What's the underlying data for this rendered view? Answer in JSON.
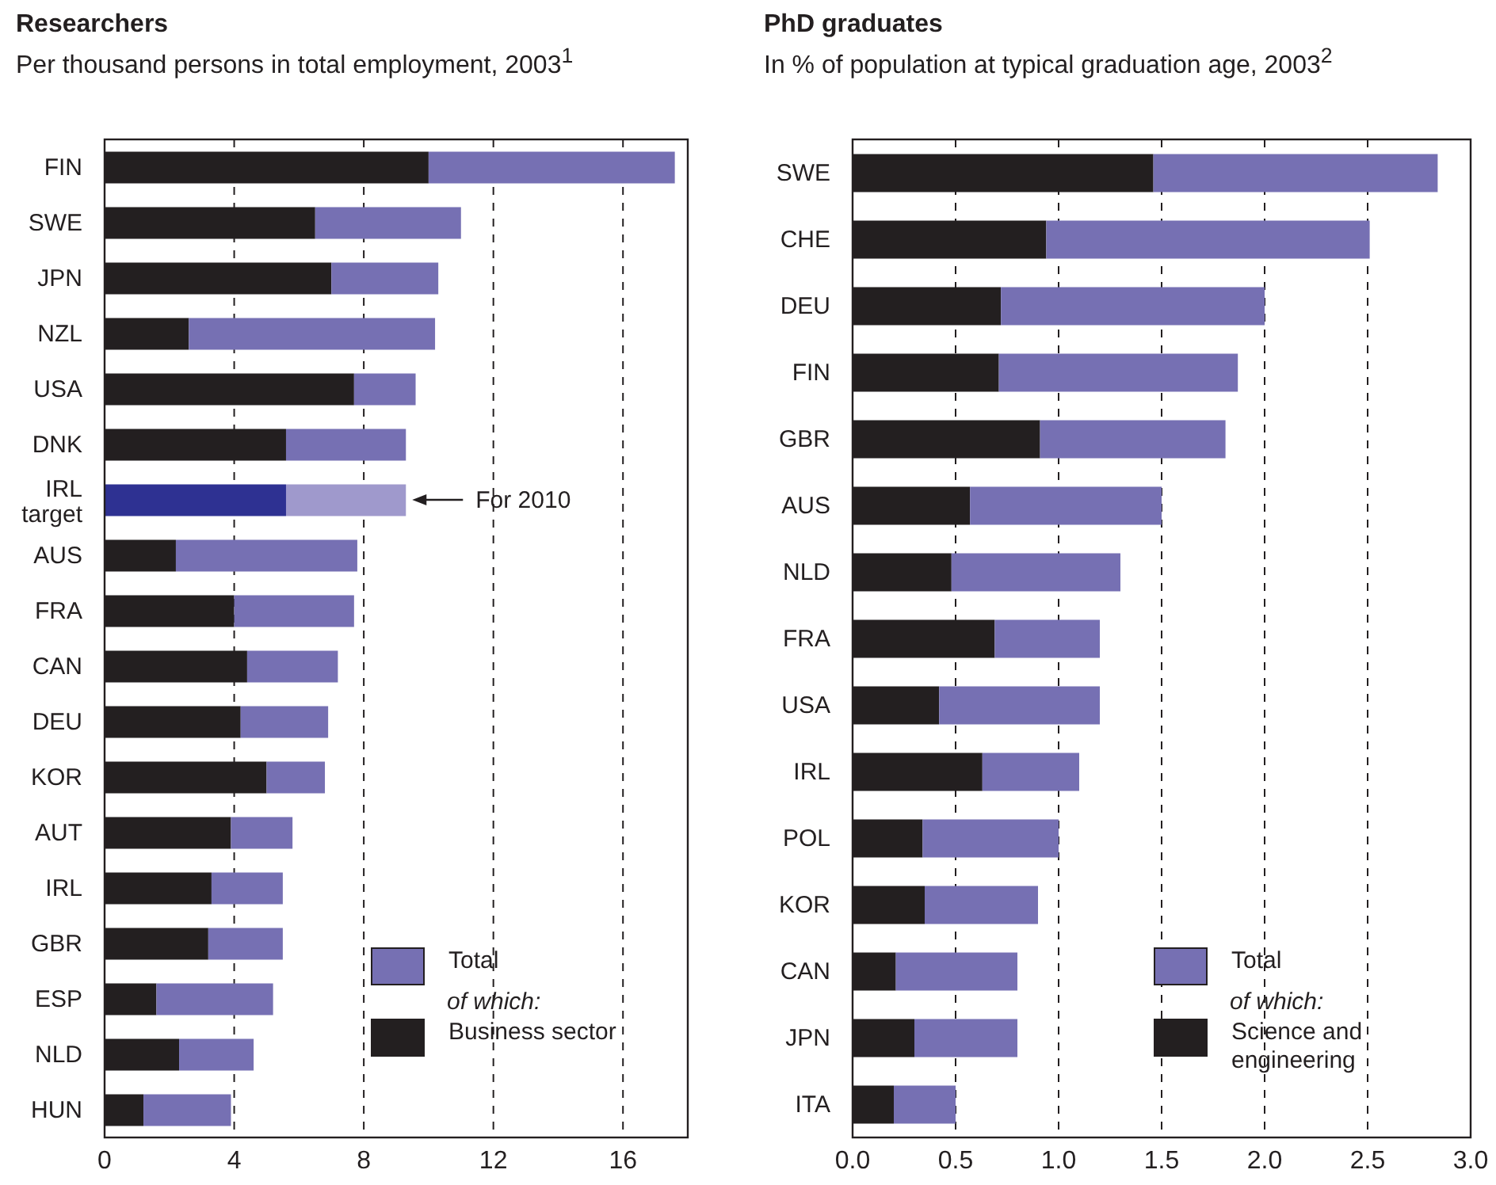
{
  "chart_data": [
    {
      "type": "bar",
      "orientation": "horizontal",
      "stacked": true,
      "title": "Researchers",
      "subtitle": "Per thousand persons in total employment, 2003$^{1}$",
      "categories": [
        "FIN",
        "SWE",
        "JPN",
        "NZL",
        "USA",
        "DNK",
        "IRL target",
        "AUS",
        "FRA",
        "CAN",
        "DEU",
        "KOR",
        "AUT",
        "IRL",
        "GBR",
        "ESP",
        "NLD",
        "HUN"
      ],
      "series": [
        {
          "name": "Business sector",
          "color": "#231f20",
          "colors": [
            "#231f20",
            "#231f20",
            "#231f20",
            "#231f20",
            "#231f20",
            "#231f20",
            "#2e3192",
            "#231f20",
            "#231f20",
            "#231f20",
            "#231f20",
            "#231f20",
            "#231f20",
            "#231f20",
            "#231f20",
            "#231f20",
            "#231f20",
            "#231f20"
          ],
          "values": [
            10.0,
            6.5,
            7.0,
            2.6,
            7.7,
            5.6,
            5.6,
            2.2,
            4.0,
            4.4,
            4.2,
            5.0,
            3.9,
            3.3,
            3.2,
            1.6,
            2.3,
            1.2
          ]
        },
        {
          "name": "Total",
          "color": "#7670b3",
          "colors": [
            "#7670b3",
            "#7670b3",
            "#7670b3",
            "#7670b3",
            "#7670b3",
            "#7670b3",
            "#9f99cc",
            "#7670b3",
            "#7670b3",
            "#7670b3",
            "#7670b3",
            "#7670b3",
            "#7670b3",
            "#7670b3",
            "#7670b3",
            "#7670b3",
            "#7670b3",
            "#7670b3"
          ],
          "values": [
            7.6,
            4.5,
            3.3,
            7.6,
            1.9,
            3.7,
            3.7,
            5.6,
            3.7,
            2.8,
            2.7,
            1.8,
            1.9,
            2.2,
            2.3,
            3.6,
            2.3,
            2.7
          ]
        }
      ],
      "xlim": [
        0,
        18
      ],
      "xticks": [
        0,
        4,
        8,
        12,
        16
      ],
      "grid": "x",
      "legend": "bottom right",
      "annotations": [
        "of which:",
        {
          "text": "For 2010",
          "x": 9.3,
          "y": "IRL target"
        }
      ]
    },
    {
      "type": "bar",
      "orientation": "horizontal",
      "stacked": true,
      "title": "PhD graduates",
      "subtitle": "In % of population at typical graduation age, 2003$^{2}$",
      "categories": [
        "SWE",
        "CHE",
        "DEU",
        "FIN",
        "GBR",
        "AUS",
        "NLD",
        "FRA",
        "USA",
        "IRL",
        "POL",
        "KOR",
        "CAN",
        "JPN",
        "ITA"
      ],
      "series": [
        {
          "name": "Science and engineering",
          "color": "#231f20",
          "values": [
            1.46,
            0.94,
            0.72,
            0.71,
            0.91,
            0.57,
            0.48,
            0.69,
            0.42,
            0.63,
            0.34,
            0.35,
            0.21,
            0.3,
            0.2
          ]
        },
        {
          "name": "Total",
          "color": "#7670b3",
          "values": [
            1.38,
            1.57,
            1.28,
            1.16,
            0.9,
            0.93,
            0.82,
            0.51,
            0.78,
            0.47,
            0.66,
            0.55,
            0.59,
            0.5,
            0.3
          ]
        }
      ],
      "xlim": [
        0,
        3
      ],
      "xticks": [
        {
          "value": 0,
          "label": "0.0"
        },
        0.5,
        {
          "value": 1,
          "label": "1.0"
        },
        1.5,
        {
          "value": 2,
          "label": "2.0"
        },
        2.5,
        {
          "value": 3,
          "label": "3.0"
        }
      ],
      "grid": "x",
      "legend": "bottom right",
      "annotations": [
        "of which:"
      ]
    }
  ]
}
